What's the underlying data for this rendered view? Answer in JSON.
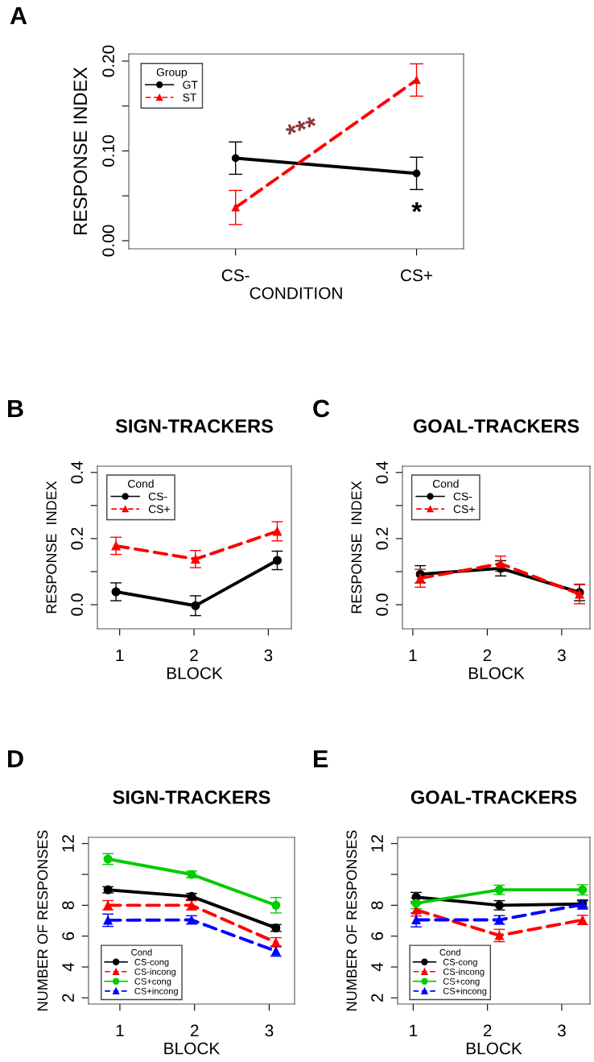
{
  "chart_data": [
    {
      "type": "line",
      "xlabel": "CONDITION",
      "ylabel": "RESPONSE INDEX",
      "legend_title": "Group",
      "legend": "top left",
      "categories": [
        "CS-",
        "CS+"
      ],
      "ylim": [
        -0.009,
        0.208
      ],
      "yticks": [
        {
          "value": 0,
          "label": "0.00"
        },
        {
          "value": 0.05,
          "label": null
        },
        {
          "value": 0.1,
          "label": "0.10"
        },
        {
          "value": 0.15,
          "label": null
        },
        {
          "value": 0.2,
          "label": "0.20"
        }
      ],
      "grid": false,
      "annotations": [
        "A",
        "***",
        "*"
      ],
      "series": [
        {
          "name": "GT",
          "color": "#000000",
          "values": [
            0.092,
            0.075
          ],
          "errors": [
            0.018,
            0.018
          ],
          "marker": "circle",
          "line_style": "solid"
        },
        {
          "name": "ST",
          "color": "#ff0000",
          "values": [
            0.037,
            0.179
          ],
          "errors": [
            0.019,
            0.018
          ],
          "marker": "triangle",
          "line_style": "dashed"
        }
      ]
    },
    {
      "type": "line",
      "title": "SIGN-TRACKERS",
      "xlabel": "BLOCK",
      "ylabel": "RESPONSE  INDEX",
      "legend_title": "Cond",
      "legend": "top left",
      "xlim": [
        0.7,
        3.31
      ],
      "xticks": [
        1,
        2,
        3
      ],
      "ylim": [
        -0.073,
        0.419
      ],
      "yticks": [
        {
          "value": 0,
          "label": "0.0"
        },
        {
          "value": 0.1,
          "label": null
        },
        {
          "value": 0.2,
          "label": "0.2"
        },
        {
          "value": 0.3,
          "label": null
        },
        {
          "value": 0.4,
          "label": "0.4"
        }
      ],
      "grid": false,
      "annotations": [
        "B"
      ],
      "series": [
        {
          "name": "CS-",
          "color": "#000000",
          "x": [
            0.95,
            2.02,
            3.12
          ],
          "values": [
            0.039,
            -0.003,
            0.134
          ],
          "errors": [
            0.027,
            0.03,
            0.028
          ],
          "marker": "circle",
          "line_style": "solid"
        },
        {
          "name": "CS+",
          "color": "#ff0000",
          "x": [
            0.95,
            2.02,
            3.12
          ],
          "values": [
            0.178,
            0.138,
            0.222
          ],
          "errors": [
            0.026,
            0.026,
            0.029
          ],
          "marker": "triangle",
          "line_style": "dashed"
        }
      ]
    },
    {
      "type": "line",
      "title": "GOAL-TRACKERS",
      "xlabel": "BLOCK",
      "ylabel": "RESPONSE  INDEX",
      "legend_title": "Cond",
      "legend": "top left",
      "xlim": [
        0.86,
        3.38
      ],
      "xticks": [
        1,
        2,
        3
      ],
      "ylim": [
        -0.073,
        0.419
      ],
      "yticks": [
        {
          "value": 0,
          "label": "0.0"
        },
        {
          "value": 0.1,
          "label": null
        },
        {
          "value": 0.2,
          "label": "0.2"
        },
        {
          "value": 0.3,
          "label": null
        },
        {
          "value": 0.4,
          "label": "0.4"
        }
      ],
      "grid": false,
      "annotations": [
        "C"
      ],
      "series": [
        {
          "name": "CS-",
          "color": "#000000",
          "x": [
            1.1,
            2.18,
            3.24
          ],
          "values": [
            0.092,
            0.11,
            0.037
          ],
          "errors": [
            0.026,
            0.023,
            0.025
          ],
          "marker": "circle",
          "line_style": "solid"
        },
        {
          "name": "CS+",
          "color": "#ff0000",
          "x": [
            1.1,
            2.18,
            3.24
          ],
          "values": [
            0.08,
            0.124,
            0.032
          ],
          "errors": [
            0.027,
            0.023,
            0.029
          ],
          "marker": "triangle",
          "line_style": "dashed"
        }
      ]
    },
    {
      "type": "line",
      "title": "SIGN-TRACKERS",
      "xlabel": "BLOCK",
      "ylabel": "NUMBER OF RESPONSES",
      "legend_title": "Cond",
      "legend": "bottom left",
      "xlim": [
        0.58,
        3.34
      ],
      "xticks": [
        1,
        2,
        3
      ],
      "ylim": [
        1.6,
        12.4
      ],
      "yticks": [
        2,
        4,
        6,
        8,
        {
          "value": 10,
          "label": null
        },
        12
      ],
      "grid": false,
      "annotations": [
        "D"
      ],
      "series": [
        {
          "name": "CS-cong",
          "color": "#000000",
          "x": [
            0.84,
            1.96,
            3.09
          ],
          "values": [
            9.0,
            8.57,
            6.53
          ],
          "errors": [
            0.2,
            0.2,
            0.22
          ],
          "marker": "circle",
          "line_style": "solid"
        },
        {
          "name": "CS-incong",
          "color": "#ff0000",
          "x": [
            0.84,
            1.96,
            3.09
          ],
          "values": [
            8.0,
            8.0,
            5.6
          ],
          "errors": [
            0.3,
            0.3,
            0.3
          ],
          "marker": "triangle",
          "line_style": "dashed"
        },
        {
          "name": "CS+cong",
          "color": "#00cc00",
          "x": [
            0.84,
            1.96,
            3.09
          ],
          "values": [
            11.0,
            10.0,
            8.0
          ],
          "errors": [
            0.35,
            0.22,
            0.5
          ],
          "marker": "circle",
          "line_style": "solid"
        },
        {
          "name": "CS+incong",
          "color": "#0000ff",
          "x": [
            0.84,
            1.96,
            3.09
          ],
          "values": [
            7.03,
            7.05,
            5.03
          ],
          "errors": [
            0.4,
            0.27,
            0.33
          ],
          "marker": "triangle",
          "line_style": "dashed"
        }
      ]
    },
    {
      "type": "line",
      "title": "GOAL-TRACKERS",
      "xlabel": "BLOCK",
      "ylabel": "NUMBER OF RESPONSES",
      "legend_title": "Cond",
      "legend": "bottom left",
      "xlim": [
        0.79,
        3.38
      ],
      "xticks": [
        1,
        2,
        3
      ],
      "ylim": [
        1.6,
        12.4
      ],
      "yticks": [
        2,
        4,
        6,
        8,
        {
          "value": 10,
          "label": null
        },
        12
      ],
      "grid": false,
      "annotations": [
        "E"
      ],
      "series": [
        {
          "name": "CS-cong",
          "color": "#000000",
          "x": [
            1.04,
            2.16,
            3.28
          ],
          "values": [
            8.53,
            8.0,
            8.08
          ],
          "errors": [
            0.3,
            0.3,
            0.2
          ],
          "marker": "circle",
          "line_style": "solid"
        },
        {
          "name": "CS-incong",
          "color": "#ff0000",
          "x": [
            1.04,
            2.16,
            3.28
          ],
          "values": [
            7.7,
            6.04,
            7.05
          ],
          "errors": [
            0.4,
            0.4,
            0.3
          ],
          "marker": "triangle",
          "line_style": "dashed"
        },
        {
          "name": "CS+cong",
          "color": "#00cc00",
          "x": [
            1.04,
            2.16,
            3.28
          ],
          "values": [
            8.13,
            9.0,
            9.0
          ],
          "errors": [
            0.35,
            0.3,
            0.33
          ],
          "marker": "circle",
          "line_style": "solid"
        },
        {
          "name": "CS+incong",
          "color": "#0000ff",
          "x": [
            1.04,
            2.16,
            3.28
          ],
          "values": [
            7.05,
            7.05,
            8.05
          ],
          "errors": [
            0.45,
            0.28,
            0.3
          ],
          "marker": "triangle",
          "line_style": "dashed"
        }
      ]
    }
  ]
}
